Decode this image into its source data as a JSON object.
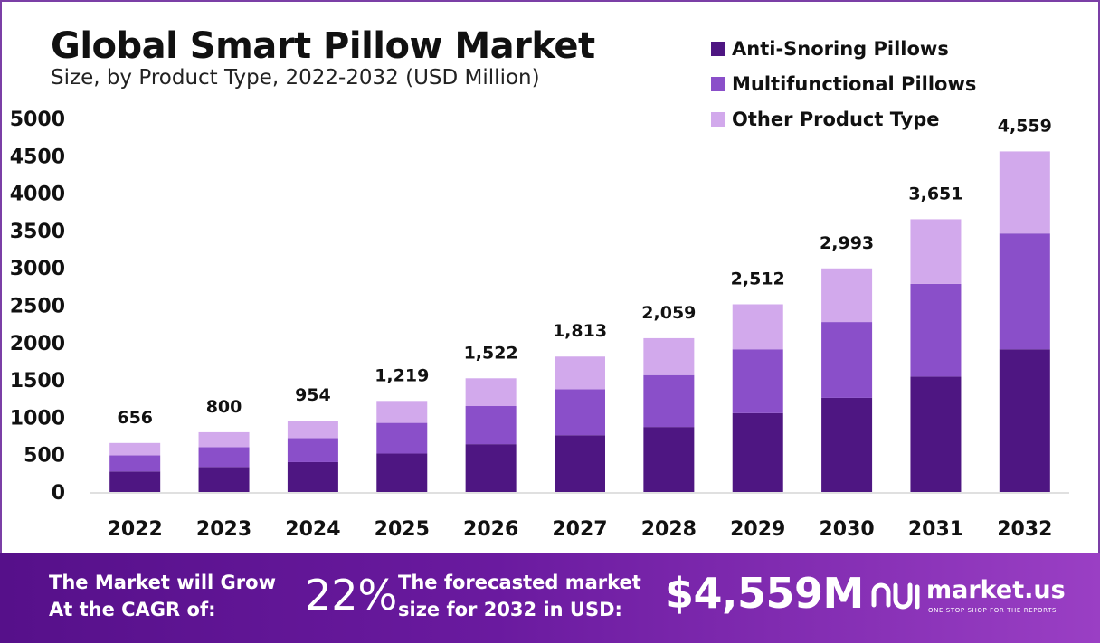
{
  "header": {
    "title": "Global Smart Pillow Market",
    "subtitle": "Size, by Product Type, 2022-2032 (USD Million)"
  },
  "colors": {
    "anti_snoring": "#4e1682",
    "multifunctional": "#8a4fc9",
    "other": "#d2a9ec",
    "footer": "#5b128c"
  },
  "chart_data": {
    "type": "bar",
    "stacked": true,
    "categories": [
      "2022",
      "2023",
      "2024",
      "2025",
      "2026",
      "2027",
      "2028",
      "2029",
      "2030",
      "2031",
      "2032"
    ],
    "series": [
      {
        "name": "Anti-Snoring Pillows",
        "values": [
          275,
          335,
          400,
          515,
          640,
          760,
          870,
          1055,
          1260,
          1545,
          1910
        ]
      },
      {
        "name": "Multifunctional Pillows",
        "values": [
          215,
          265,
          320,
          410,
          510,
          615,
          695,
          855,
          1015,
          1240,
          1550
        ]
      },
      {
        "name": "Other Product Type",
        "values": [
          166,
          200,
          234,
          294,
          372,
          438,
          494,
          602,
          718,
          866,
          1099
        ]
      }
    ],
    "totals": [
      656,
      800,
      954,
      1219,
      1522,
      1813,
      2059,
      2512,
      2993,
      3651,
      4559
    ],
    "total_labels": [
      "656",
      "800",
      "954",
      "1,219",
      "1,522",
      "1,813",
      "2,059",
      "2,512",
      "2,993",
      "3,651",
      "4,559"
    ],
    "yticks": [
      0,
      500,
      1000,
      1500,
      2000,
      2500,
      3000,
      3500,
      4000,
      4500,
      5000
    ],
    "ylim": [
      0,
      5000
    ],
    "grid": false,
    "legend": "top-right"
  },
  "footer": {
    "cagr_label_line1": "The Market will Grow",
    "cagr_label_line2": "At the CAGR of:",
    "cagr_value": "22%",
    "forecast_label_line1": "The forecasted market",
    "forecast_label_line2": "size for 2032 in USD:",
    "forecast_value": "$4,559M",
    "brand_name": "market.us",
    "brand_tagline": "ONE STOP SHOP FOR THE REPORTS"
  }
}
